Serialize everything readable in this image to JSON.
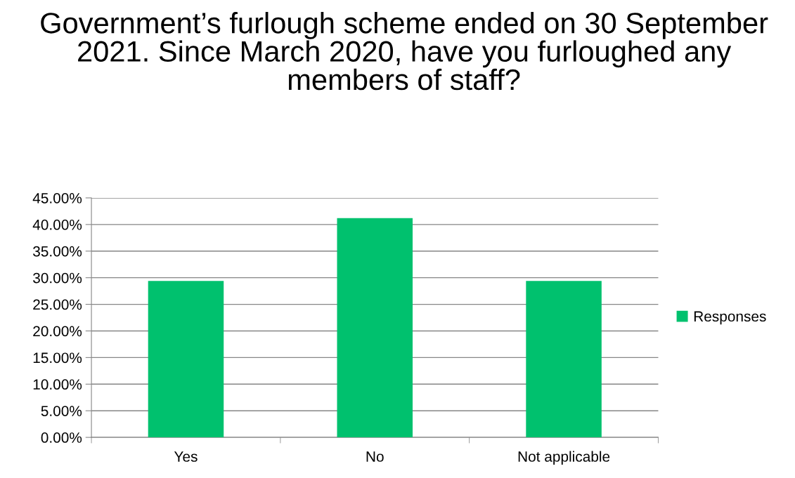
{
  "chart_data": {
    "type": "bar",
    "title": "Government’s furlough scheme ended on 30 September 2021. Since March 2020, have you furloughed any members of staff?",
    "categories": [
      "Yes",
      "No",
      "Not applicable"
    ],
    "series": [
      {
        "name": "Responses",
        "color": "#00c16e",
        "values": [
          29.4,
          41.2,
          29.4
        ]
      }
    ],
    "ylim": [
      0,
      45
    ],
    "yticks": [
      {
        "value": 0,
        "label": "0.00%"
      },
      {
        "value": 5,
        "label": "5.00%"
      },
      {
        "value": 10,
        "label": "10.00%"
      },
      {
        "value": 15,
        "label": "15.00%"
      },
      {
        "value": 20,
        "label": "20.00%"
      },
      {
        "value": 25,
        "label": "25.00%"
      },
      {
        "value": 30,
        "label": "30.00%"
      },
      {
        "value": 35,
        "label": "35.00%"
      },
      {
        "value": 40,
        "label": "40.00%"
      },
      {
        "value": 45,
        "label": "45.00%"
      }
    ],
    "grid": "y",
    "legend": "right"
  }
}
